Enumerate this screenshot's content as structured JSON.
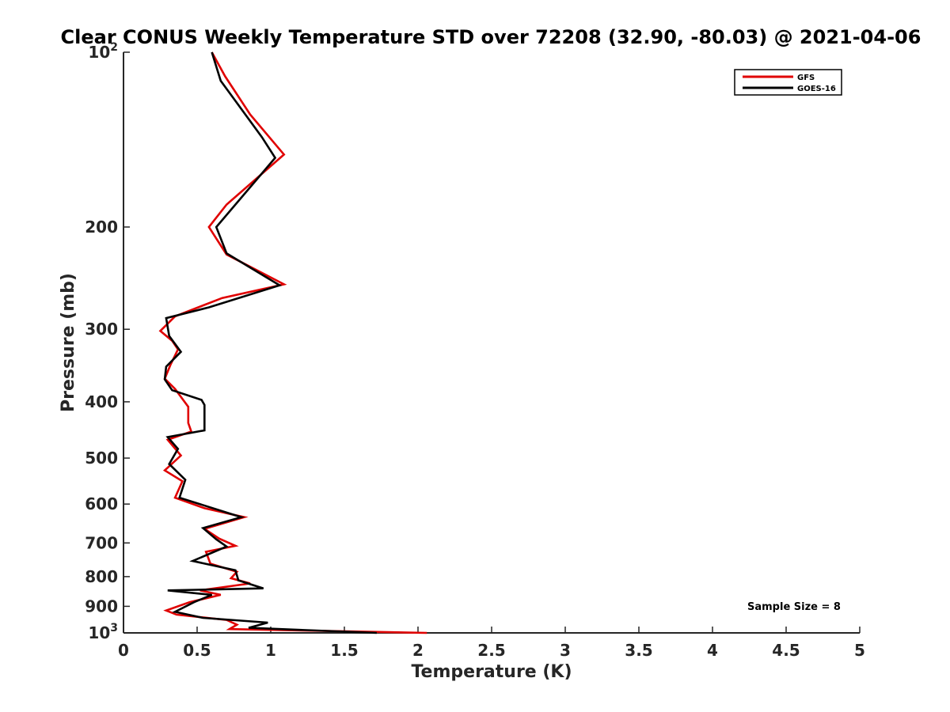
{
  "chart_data": {
    "type": "line",
    "title": "Clear CONUS Weekly Temperature STD over 72208 (32.90, -80.03) @ 2021-04-06",
    "xlabel": "Temperature (K)",
    "ylabel": "Pressure (mb)",
    "xlim": [
      0,
      5
    ],
    "ylim": [
      100,
      1000
    ],
    "y_scale": "log",
    "y_reversed": true,
    "grid": false,
    "legend_position": "top-right",
    "x_ticks": [
      {
        "value": 0,
        "label": "0"
      },
      {
        "value": 0.5,
        "label": "0.5"
      },
      {
        "value": 1,
        "label": "1"
      },
      {
        "value": 1.5,
        "label": "1.5"
      },
      {
        "value": 2,
        "label": "2"
      },
      {
        "value": 2.5,
        "label": "2.5"
      },
      {
        "value": 3,
        "label": "3"
      },
      {
        "value": 3.5,
        "label": "3.5"
      },
      {
        "value": 4,
        "label": "4"
      },
      {
        "value": 4.5,
        "label": "4.5"
      },
      {
        "value": 5,
        "label": "5"
      }
    ],
    "y_ticks": [
      {
        "value": 100,
        "base": "10",
        "exp": "2"
      },
      {
        "value": 200,
        "label": "200"
      },
      {
        "value": 300,
        "label": "300"
      },
      {
        "value": 400,
        "label": "400"
      },
      {
        "value": 500,
        "label": "500"
      },
      {
        "value": 600,
        "label": "600"
      },
      {
        "value": 700,
        "label": "700"
      },
      {
        "value": 800,
        "label": "800"
      },
      {
        "value": 900,
        "label": "900"
      },
      {
        "value": 1000,
        "base": "10",
        "exp": "3"
      }
    ],
    "annotation": "Sample Size = 8",
    "series": [
      {
        "name": "GFS",
        "color": "#e00000",
        "points": [
          [
            0.6,
            100
          ],
          [
            0.69,
            110
          ],
          [
            0.86,
            128
          ],
          [
            1.09,
            150
          ],
          [
            0.7,
            183
          ],
          [
            0.58,
            200
          ],
          [
            0.7,
            223
          ],
          [
            1.09,
            251
          ],
          [
            0.67,
            265
          ],
          [
            0.35,
            285
          ],
          [
            0.25,
            302
          ],
          [
            0.33,
            314
          ],
          [
            0.37,
            325
          ],
          [
            0.32,
            345
          ],
          [
            0.28,
            365
          ],
          [
            0.35,
            380
          ],
          [
            0.44,
            408
          ],
          [
            0.44,
            435
          ],
          [
            0.46,
            450
          ],
          [
            0.3,
            465
          ],
          [
            0.39,
            495
          ],
          [
            0.28,
            525
          ],
          [
            0.4,
            548
          ],
          [
            0.35,
            585
          ],
          [
            0.55,
            610
          ],
          [
            0.82,
            632
          ],
          [
            0.55,
            662
          ],
          [
            0.65,
            688
          ],
          [
            0.76,
            708
          ],
          [
            0.56,
            725
          ],
          [
            0.59,
            760
          ],
          [
            0.77,
            785
          ],
          [
            0.73,
            805
          ],
          [
            0.86,
            822
          ],
          [
            0.52,
            845
          ],
          [
            0.66,
            860
          ],
          [
            0.45,
            885
          ],
          [
            0.29,
            915
          ],
          [
            0.36,
            930
          ],
          [
            0.7,
            950
          ],
          [
            0.77,
            968
          ],
          [
            0.72,
            985
          ],
          [
            2.06,
            1000
          ]
        ]
      },
      {
        "name": "GOES-16",
        "color": "#000000",
        "points": [
          [
            0.6,
            100
          ],
          [
            0.66,
            112
          ],
          [
            0.94,
            140
          ],
          [
            1.03,
            152
          ],
          [
            0.63,
            200
          ],
          [
            0.7,
            222
          ],
          [
            1.06,
            252
          ],
          [
            0.58,
            275
          ],
          [
            0.29,
            287
          ],
          [
            0.31,
            308
          ],
          [
            0.39,
            328
          ],
          [
            0.29,
            348
          ],
          [
            0.28,
            366
          ],
          [
            0.33,
            382
          ],
          [
            0.53,
            397
          ],
          [
            0.55,
            405
          ],
          [
            0.55,
            448
          ],
          [
            0.3,
            460
          ],
          [
            0.37,
            482
          ],
          [
            0.31,
            512
          ],
          [
            0.42,
            545
          ],
          [
            0.38,
            585
          ],
          [
            0.8,
            632
          ],
          [
            0.54,
            660
          ],
          [
            0.63,
            690
          ],
          [
            0.7,
            710
          ],
          [
            0.47,
            752
          ],
          [
            0.76,
            780
          ],
          [
            0.78,
            812
          ],
          [
            0.95,
            838
          ],
          [
            0.3,
            845
          ],
          [
            0.6,
            860
          ],
          [
            0.48,
            885
          ],
          [
            0.35,
            920
          ],
          [
            0.54,
            942
          ],
          [
            0.98,
            960
          ],
          [
            0.85,
            980
          ],
          [
            1.72,
            1000
          ]
        ]
      }
    ]
  }
}
